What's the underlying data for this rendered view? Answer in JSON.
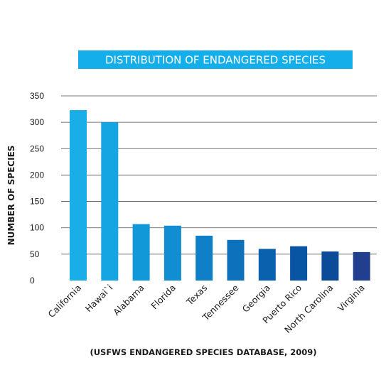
{
  "chart_data": {
    "type": "bar",
    "title": "DISTRIBUTION OF ENDANGERED SPECIES",
    "ylabel": "NUMBER OF SPECIES",
    "xlabel": "",
    "source": "(USFWS ENDANGERED SPECIES DATABASE, 2009)",
    "categories": [
      "California",
      "Hawai`i",
      "Alabama",
      "Florida",
      "Texas",
      "Tennessee",
      "Georgia",
      "Puerto Rico",
      "North Carolina",
      "Virginia"
    ],
    "values": [
      323,
      300,
      107,
      104,
      85,
      77,
      60,
      65,
      55,
      54
    ],
    "ylim": [
      0,
      350
    ],
    "yticks": [
      0,
      50,
      100,
      150,
      200,
      250,
      300,
      350
    ],
    "grid": true,
    "legend": "none",
    "colors": [
      "#1aaee8",
      "#16a5e3",
      "#1198d8",
      "#118ed2",
      "#0f80c8",
      "#0d71bb",
      "#0a62ae",
      "#0856a3",
      "#0b4b98",
      "#213e8f"
    ],
    "title_bg": "#14aeea",
    "grid_color": "#4d4d4d"
  }
}
